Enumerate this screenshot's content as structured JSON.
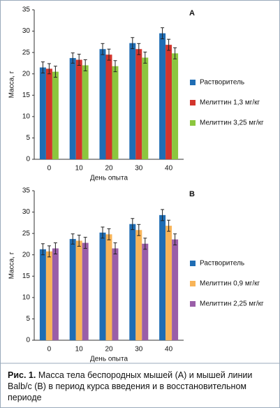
{
  "chart_data": [
    {
      "type": "bar",
      "title": "A",
      "xlabel": "День опыта",
      "ylabel": "Масса, г",
      "categories": [
        "0",
        "10",
        "20",
        "30",
        "40"
      ],
      "series": [
        {
          "name": "Растворитель",
          "color": "#1f6db4",
          "values": [
            21.5,
            23.7,
            25.8,
            27.2,
            29.5
          ],
          "errors": [
            1.3,
            1.2,
            1.3,
            1.3,
            1.3
          ]
        },
        {
          "name": "Мелиттин 1,3 мг/кг",
          "color": "#d2342c",
          "values": [
            21.2,
            23.3,
            24.5,
            25.8,
            26.8
          ],
          "errors": [
            1.2,
            1.3,
            1.3,
            1.3,
            1.3
          ]
        },
        {
          "name": "Мелиттин 3,25 мг/кг",
          "color": "#8cc63e",
          "values": [
            20.5,
            22.0,
            21.8,
            23.8,
            24.8
          ],
          "errors": [
            1.3,
            1.3,
            1.3,
            1.3,
            1.3
          ]
        }
      ],
      "ylim": [
        0,
        35
      ],
      "yticks": [
        0,
        5,
        10,
        15,
        20,
        25,
        30,
        35
      ]
    },
    {
      "type": "bar",
      "title": "B",
      "xlabel": "День опыта",
      "ylabel": "Масса, г",
      "categories": [
        "0",
        "10",
        "20",
        "30",
        "40"
      ],
      "series": [
        {
          "name": "Растворитель",
          "color": "#1f6db4",
          "values": [
            21.3,
            23.7,
            25.2,
            27.2,
            29.3
          ],
          "errors": [
            1.3,
            1.2,
            1.3,
            1.3,
            1.3
          ]
        },
        {
          "name": "Мелиттин 0,9 мг/кг",
          "color": "#f8b458",
          "values": [
            20.8,
            23.3,
            24.8,
            25.8,
            26.8
          ],
          "errors": [
            1.3,
            1.3,
            1.3,
            1.3,
            1.3
          ]
        },
        {
          "name": "Мелиттин 2,25 мг/кг",
          "color": "#9a5ea8",
          "values": [
            21.5,
            22.8,
            21.5,
            22.6,
            23.6
          ],
          "errors": [
            1.3,
            1.3,
            1.3,
            1.3,
            1.3
          ]
        }
      ],
      "ylim": [
        0,
        35
      ],
      "yticks": [
        0,
        5,
        10,
        15,
        20,
        25,
        30,
        35
      ]
    }
  ],
  "caption": {
    "label": "Рис. 1.",
    "text": "Масса тела беспородных мышей (А) и мышей линии Balb/c (В) в период курса введения и в восстановительном периоде"
  }
}
